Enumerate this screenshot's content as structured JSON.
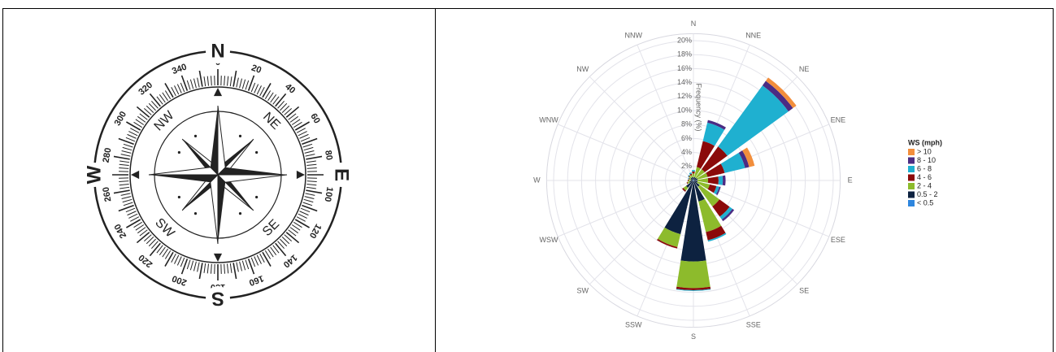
{
  "compass": {
    "cardinals": [
      "N",
      "E",
      "S",
      "W"
    ],
    "intercardinals": [
      "NE",
      "SE",
      "SW",
      "NW"
    ],
    "degrees": [
      0,
      20,
      40,
      60,
      80,
      100,
      120,
      140,
      160,
      180,
      200,
      220,
      240,
      260,
      280,
      300,
      320,
      340
    ]
  },
  "chart_data": {
    "type": "windrose",
    "legend_title": "WS (mph)",
    "axis_title": "Frequency (%)",
    "grid": true,
    "directions": [
      "N",
      "NNE",
      "NE",
      "ENE",
      "E",
      "ESE",
      "SE",
      "SSE",
      "S",
      "SSW",
      "SW",
      "WSW",
      "W",
      "WNW",
      "NW",
      "NNW"
    ],
    "rlim": [
      0,
      21
    ],
    "rticks": [
      {
        "value": 2,
        "label": "2%"
      },
      {
        "value": 4,
        "label": "4%"
      },
      {
        "value": 6,
        "label": "6%"
      },
      {
        "value": 8,
        "label": "8%"
      },
      {
        "value": 10,
        "label": "10%"
      },
      {
        "value": 12,
        "label": "12%"
      },
      {
        "value": 14,
        "label": "14%"
      },
      {
        "value": 16,
        "label": "16%"
      },
      {
        "value": 18,
        "label": "18%"
      },
      {
        "value": 20,
        "label": "20%"
      }
    ],
    "series": [
      {
        "name": "< 0.5",
        "color": "#2e86de",
        "values": [
          0.1,
          0.1,
          0.1,
          0.1,
          0.1,
          0.1,
          0.1,
          0.1,
          0.1,
          0.1,
          0.1,
          0.1,
          0.1,
          0.1,
          0.1,
          0.1
        ]
      },
      {
        "name": "0.5 - 2",
        "color": "#0d2240",
        "values": [
          0.4,
          0.4,
          0.4,
          0.5,
          0.5,
          0.5,
          1.0,
          3.0,
          11.5,
          7.8,
          1.2,
          0.5,
          0.3,
          0.3,
          0.4,
          0.4
        ]
      },
      {
        "name": "2 - 4",
        "color": "#8dbb2c",
        "values": [
          0.5,
          1.5,
          1.5,
          1.5,
          1.5,
          1.8,
          3.5,
          4.5,
          3.8,
          1.9,
          0.5,
          0.3,
          0.3,
          0.2,
          0.3,
          0.3
        ]
      },
      {
        "name": "4 - 6",
        "color": "#8b0a0a",
        "values": [
          0.3,
          3.8,
          4.0,
          2.5,
          1.5,
          1.0,
          1.8,
          1.2,
          0.3,
          0.2,
          0.2,
          0.1,
          0.1,
          0.1,
          0.1,
          0.2
        ]
      },
      {
        "name": "6 - 8",
        "color": "#1fb0d0",
        "values": [
          0.2,
          2.7,
          10.8,
          3.0,
          0.6,
          0.4,
          0.5,
          0.2,
          0.1,
          0,
          0,
          0,
          0,
          0.1,
          0.1,
          0.2
        ]
      },
      {
        "name": "8 - 10",
        "color": "#4b2c83",
        "values": [
          0,
          0.4,
          0.8,
          0.6,
          0.4,
          0.2,
          0.3,
          0,
          0,
          0,
          0,
          0,
          0,
          0,
          0,
          0
        ]
      },
      {
        "name": "> 10",
        "color": "#f28e3c",
        "values": [
          0,
          0,
          0.6,
          0.8,
          0,
          0,
          0,
          0,
          0,
          0,
          0,
          0,
          0,
          0,
          0,
          0
        ]
      }
    ]
  }
}
